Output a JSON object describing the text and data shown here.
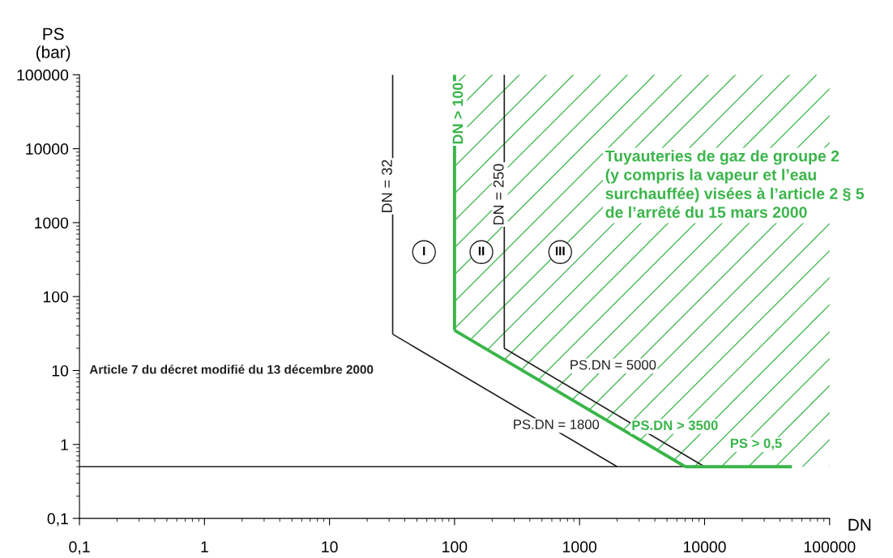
{
  "chart_data": {
    "type": "line",
    "xlabel": "DN",
    "ylabel": "PS\n(bar)",
    "log": "xy",
    "xlim": [
      0.1,
      100000
    ],
    "ylim": [
      0.1,
      100000
    ],
    "xticks": [
      {
        "value": 0.1,
        "label": "0,1"
      },
      1,
      10,
      100,
      1000,
      10000,
      100000
    ],
    "yticks": [
      {
        "value": 0.1,
        "label": "0,1"
      },
      1,
      10,
      100,
      1000,
      10000,
      100000
    ],
    "series": [
      {
        "name": "DN = 32",
        "color": "#231f20",
        "x": [
          32,
          32
        ],
        "values": [
          100000,
          31
        ]
      },
      {
        "name": "PS.DN = 1800",
        "color": "#231f20",
        "x": [
          32,
          2000
        ],
        "values": [
          31,
          0.5
        ]
      },
      {
        "name": "DN = 250",
        "color": "#231f20",
        "x": [
          250,
          250
        ],
        "values": [
          100000,
          20
        ]
      },
      {
        "name": "PS.DN = 5000",
        "color": "#231f20",
        "x": [
          250,
          10000
        ],
        "values": [
          20,
          0.5
        ]
      },
      {
        "color": "#231f20",
        "x": [
          0.1,
          10000
        ],
        "values": [
          0.5,
          0.5
        ]
      },
      {
        "name": "DN > 100",
        "color": "#3ab54a",
        "x": [
          100,
          100
        ],
        "values": [
          100000,
          35
        ]
      },
      {
        "name": "PS.DN > 3500",
        "color": "#3ab54a",
        "x": [
          100,
          7000
        ],
        "values": [
          35,
          0.5
        ]
      },
      {
        "name": "PS > 0,5",
        "color": "#3ab54a",
        "x": [
          7000,
          50000
        ],
        "values": [
          0.5,
          0.5
        ]
      }
    ],
    "annotations": [
      "Article 7 du décret modifié du 13 décembre 2000",
      "Tuyauteries de gaz de groupe 2\n(y compris la vapeur et l’eau\nsurchauffée) visées à l’article 2 § 5\nde l’arrêté du 15 mars 2000",
      "I",
      "II",
      "III"
    ]
  }
}
